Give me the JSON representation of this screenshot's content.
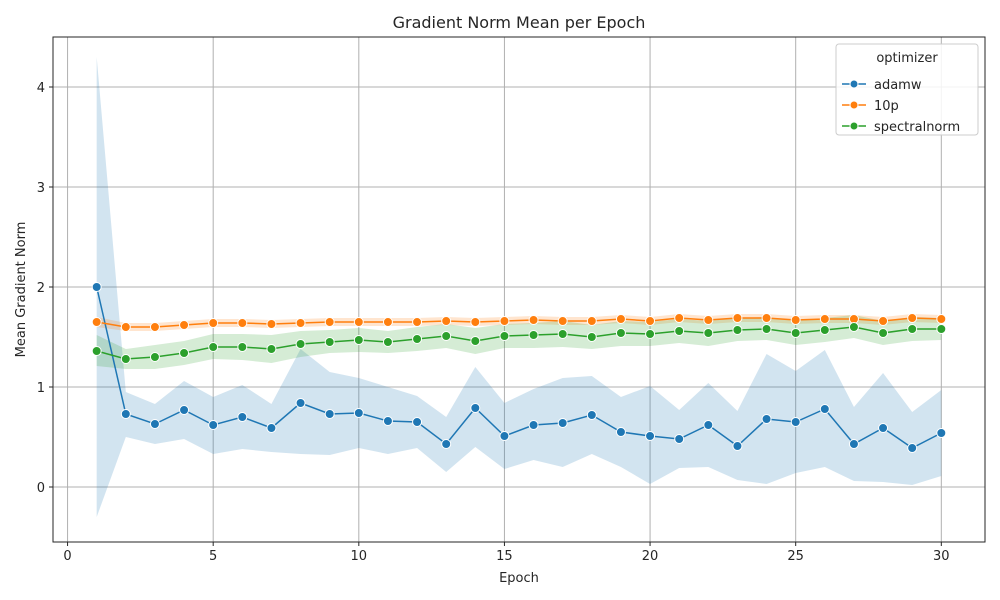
{
  "chart_data": {
    "type": "line",
    "title": "Gradient Norm Mean per Epoch",
    "xlabel": "Epoch",
    "ylabel": "Mean Gradient Norm",
    "xlim": [
      -0.5,
      31.5
    ],
    "ylim": [
      -0.55,
      4.5
    ],
    "xticks": [
      0,
      5,
      10,
      15,
      20,
      25,
      30
    ],
    "yticks": [
      0,
      1,
      2,
      3,
      4
    ],
    "grid": true,
    "legend": {
      "title": "optimizer",
      "placement": "top-right"
    },
    "x": [
      1,
      2,
      3,
      4,
      5,
      6,
      7,
      8,
      9,
      10,
      11,
      12,
      13,
      14,
      15,
      16,
      17,
      18,
      19,
      20,
      21,
      22,
      23,
      24,
      25,
      26,
      27,
      28,
      29,
      30
    ],
    "series": [
      {
        "name": "adamw",
        "color": "#1f77b4",
        "values": [
          2.0,
          0.73,
          0.63,
          0.77,
          0.62,
          0.7,
          0.59,
          0.84,
          0.73,
          0.74,
          0.66,
          0.65,
          0.43,
          0.79,
          0.51,
          0.62,
          0.64,
          0.72,
          0.55,
          0.51,
          0.48,
          0.62,
          0.41,
          0.68,
          0.65,
          0.78,
          0.43,
          0.59,
          0.39,
          0.54
        ],
        "lower": [
          -0.3,
          0.5,
          0.43,
          0.48,
          0.33,
          0.38,
          0.35,
          0.33,
          0.32,
          0.39,
          0.33,
          0.39,
          0.15,
          0.4,
          0.18,
          0.27,
          0.2,
          0.33,
          0.2,
          0.03,
          0.19,
          0.2,
          0.07,
          0.03,
          0.14,
          0.2,
          0.06,
          0.05,
          0.02,
          0.11
        ],
        "upper": [
          4.3,
          0.95,
          0.83,
          1.06,
          0.9,
          1.02,
          0.83,
          1.38,
          1.15,
          1.09,
          1.0,
          0.91,
          0.7,
          1.2,
          0.84,
          0.98,
          1.09,
          1.11,
          0.9,
          1.01,
          0.77,
          1.04,
          0.76,
          1.33,
          1.16,
          1.37,
          0.8,
          1.14,
          0.75,
          0.97
        ]
      },
      {
        "name": "10p",
        "color": "#ff7f0e",
        "values": [
          1.65,
          1.6,
          1.6,
          1.62,
          1.64,
          1.64,
          1.63,
          1.64,
          1.65,
          1.65,
          1.65,
          1.65,
          1.66,
          1.65,
          1.66,
          1.67,
          1.66,
          1.66,
          1.68,
          1.66,
          1.69,
          1.67,
          1.69,
          1.69,
          1.67,
          1.68,
          1.68,
          1.66,
          1.69,
          1.68
        ],
        "lower": [
          1.6,
          1.56,
          1.56,
          1.58,
          1.6,
          1.6,
          1.59,
          1.6,
          1.61,
          1.61,
          1.61,
          1.61,
          1.62,
          1.61,
          1.62,
          1.63,
          1.62,
          1.62,
          1.64,
          1.62,
          1.65,
          1.63,
          1.65,
          1.65,
          1.63,
          1.64,
          1.64,
          1.62,
          1.65,
          1.64
        ],
        "upper": [
          1.7,
          1.64,
          1.64,
          1.66,
          1.68,
          1.68,
          1.67,
          1.68,
          1.69,
          1.69,
          1.69,
          1.69,
          1.7,
          1.69,
          1.7,
          1.71,
          1.7,
          1.7,
          1.72,
          1.7,
          1.73,
          1.71,
          1.73,
          1.73,
          1.71,
          1.72,
          1.72,
          1.7,
          1.73,
          1.72
        ]
      },
      {
        "name": "spectralnorm",
        "color": "#2ca02c",
        "values": [
          1.36,
          1.28,
          1.3,
          1.34,
          1.4,
          1.4,
          1.38,
          1.43,
          1.45,
          1.47,
          1.45,
          1.48,
          1.51,
          1.46,
          1.51,
          1.52,
          1.53,
          1.5,
          1.54,
          1.53,
          1.56,
          1.54,
          1.57,
          1.58,
          1.54,
          1.57,
          1.6,
          1.54,
          1.58,
          1.58
        ],
        "lower": [
          1.21,
          1.18,
          1.18,
          1.22,
          1.28,
          1.27,
          1.24,
          1.3,
          1.34,
          1.35,
          1.34,
          1.36,
          1.39,
          1.33,
          1.39,
          1.39,
          1.4,
          1.38,
          1.41,
          1.41,
          1.44,
          1.41,
          1.46,
          1.47,
          1.42,
          1.45,
          1.49,
          1.42,
          1.46,
          1.47
        ],
        "upper": [
          1.52,
          1.38,
          1.42,
          1.46,
          1.53,
          1.53,
          1.52,
          1.56,
          1.57,
          1.59,
          1.56,
          1.6,
          1.63,
          1.59,
          1.63,
          1.64,
          1.66,
          1.62,
          1.66,
          1.65,
          1.68,
          1.66,
          1.69,
          1.7,
          1.66,
          1.69,
          1.72,
          1.66,
          1.7,
          1.69
        ]
      }
    ]
  }
}
